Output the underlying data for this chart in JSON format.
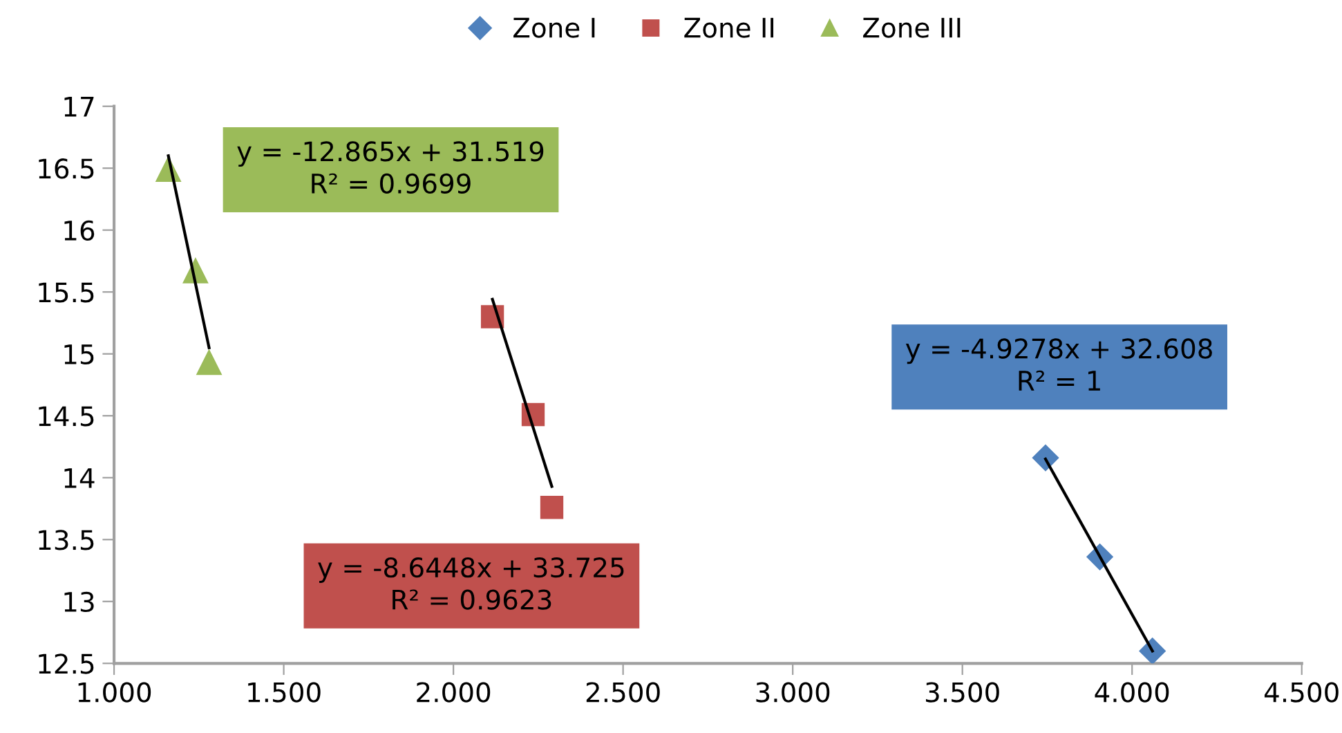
{
  "chart_data": {
    "type": "scatter",
    "xlim": [
      1.0,
      4.5
    ],
    "xticks": [
      {
        "value": 1.0,
        "label": "1.000"
      },
      {
        "value": 1.5,
        "label": "1.500"
      },
      {
        "value": 2.0,
        "label": "2.000"
      },
      {
        "value": 2.5,
        "label": "2.500"
      },
      {
        "value": 3.0,
        "label": "3.000"
      },
      {
        "value": 3.5,
        "label": "3.500"
      },
      {
        "value": 4.0,
        "label": "4.000"
      },
      {
        "value": 4.5,
        "label": "4.500"
      }
    ],
    "ylim": [
      12.5,
      17
    ],
    "yticks": [
      12.5,
      13,
      13.5,
      14,
      14.5,
      15,
      15.5,
      16,
      16.5,
      17
    ],
    "grid": false,
    "legend": "top",
    "series": [
      {
        "name": "Zone I",
        "color": "#4f81bd",
        "marker": "diamond",
        "x": [
          3.745,
          3.905,
          4.06
        ],
        "values": [
          14.16,
          13.36,
          12.6
        ]
      },
      {
        "name": "Zone II",
        "color": "#c0504d",
        "marker": "square",
        "x": [
          2.115,
          2.235,
          2.29
        ],
        "values": [
          15.3,
          14.51,
          13.76
        ]
      },
      {
        "name": "Zone III",
        "color": "#9bbb59",
        "marker": "triangle",
        "x": [
          1.16,
          1.24,
          1.28
        ],
        "values": [
          16.49,
          15.67,
          14.93
        ]
      },
      {
        "type": "line",
        "color": "#000000",
        "x": [
          3.745,
          4.06
        ],
        "values": [
          14.15,
          12.6
        ]
      },
      {
        "type": "line",
        "color": "#000000",
        "x": [
          2.115,
          2.29
        ],
        "values": [
          15.44,
          13.93
        ]
      },
      {
        "type": "line",
        "color": "#000000",
        "x": [
          1.16,
          1.28
        ],
        "values": [
          16.6,
          15.05
        ]
      }
    ],
    "annotations": [
      "y = -4.9278x + 32.608\nR² = 1",
      "y = -8.6448x + 33.725\nR² = 0.9623",
      "y = -12.865x + 31.519\nR² = 0.9699"
    ]
  }
}
